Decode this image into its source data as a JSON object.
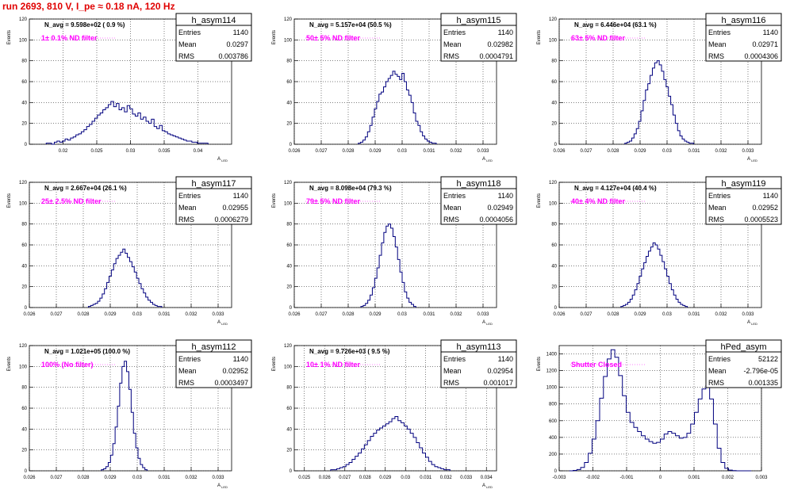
{
  "run_title": "run 2693,   810 V, I_pe ≈ 0.18 nA, 120 Hz",
  "chart_data": [
    {
      "type": "histogram",
      "name": "h_asym114",
      "stats": [
        [
          "Entries",
          "1140"
        ],
        [
          "Mean",
          "0.0297"
        ],
        [
          "RMS",
          "0.003786"
        ]
      ],
      "navg": "N_avg = 9.598e+02 ( 0.9 %)",
      "filter": "1± 0.1% ND filter",
      "ylabel": "Events",
      "xlabel": "A",
      "xlim": [
        0.015,
        0.045
      ],
      "ylim": [
        0,
        120
      ],
      "xticks": [
        0.02,
        0.025,
        0.03,
        0.035,
        0.04
      ],
      "xticklabels": [
        "0.02",
        "0.025",
        "0.03",
        "0.035",
        "0.04"
      ],
      "yticks": [
        0,
        20,
        40,
        60,
        80,
        100,
        120
      ],
      "values": [
        1,
        1,
        0,
        2,
        3,
        2,
        3,
        5,
        4,
        6,
        7,
        9,
        10,
        12,
        14,
        17,
        19,
        22,
        25,
        28,
        30,
        33,
        35,
        38,
        41,
        36,
        39,
        33,
        35,
        31,
        37,
        34,
        29,
        27,
        30,
        24,
        26,
        22,
        20,
        24,
        17,
        15,
        18,
        13,
        12,
        10,
        9,
        8,
        7,
        6,
        5,
        4,
        3,
        3,
        2,
        2,
        1,
        1,
        1,
        1
      ]
    },
    {
      "type": "histogram",
      "name": "h_asym115",
      "stats": [
        [
          "Entries",
          "1140"
        ],
        [
          "Mean",
          "0.02982"
        ],
        [
          "RMS",
          "0.0004791"
        ]
      ],
      "navg": "N_avg = 5.157e+04 (50.5 %)",
      "filter": "50± 5% ND filter",
      "ylabel": "Events",
      "xlabel": "A",
      "xlim": [
        0.026,
        0.0335
      ],
      "ylim": [
        0,
        120
      ],
      "xticks": [
        0.026,
        0.027,
        0.028,
        0.029,
        0.03,
        0.031,
        0.032,
        0.033
      ],
      "xticklabels": [
        "0.026",
        "0.027",
        "0.028",
        "0.029",
        "0.03",
        "0.031",
        "0.032",
        "0.033"
      ],
      "yticks": [
        0,
        20,
        40,
        60,
        80,
        100,
        120
      ],
      "values": [
        1,
        2,
        4,
        7,
        12,
        18,
        26,
        34,
        41,
        48,
        50,
        55,
        60,
        63,
        66,
        70,
        67,
        65,
        62,
        68,
        60,
        52,
        47,
        40,
        30,
        22,
        18,
        12,
        8,
        5,
        3,
        2,
        1,
        1
      ]
    },
    {
      "type": "histogram",
      "name": "h_asym116",
      "stats": [
        [
          "Entries",
          "1140"
        ],
        [
          "Mean",
          "0.02971"
        ],
        [
          "RMS",
          "0.0004306"
        ]
      ],
      "navg": "N_avg = 6.446e+04 (63.1 %)",
      "filter": "63± 5% ND filter",
      "ylabel": "Events",
      "xlabel": "A",
      "xlim": [
        0.026,
        0.0335
      ],
      "ylim": [
        0,
        120
      ],
      "xticks": [
        0.026,
        0.027,
        0.028,
        0.029,
        0.03,
        0.031,
        0.032,
        0.033
      ],
      "xticklabels": [
        "0.026",
        "0.027",
        "0.028",
        "0.029",
        "0.03",
        "0.031",
        "0.032",
        "0.033"
      ],
      "yticks": [
        0,
        20,
        40,
        60,
        80,
        100,
        120
      ],
      "values": [
        1,
        2,
        3,
        6,
        10,
        15,
        22,
        32,
        42,
        52,
        58,
        66,
        73,
        78,
        80,
        76,
        70,
        62,
        55,
        46,
        38,
        28,
        20,
        13,
        8,
        5,
        3,
        2,
        1,
        1
      ]
    },
    {
      "type": "histogram",
      "name": "h_asym117",
      "stats": [
        [
          "Entries",
          "1140"
        ],
        [
          "Mean",
          "0.02955"
        ],
        [
          "RMS",
          "0.0006279"
        ]
      ],
      "navg": "N_avg = 2.667e+04 (26.1 %)",
      "filter": "25± 2.5% ND filter",
      "ylabel": "Events",
      "xlabel": "A",
      "xlim": [
        0.026,
        0.0335
      ],
      "ylim": [
        0,
        120
      ],
      "xticks": [
        0.026,
        0.027,
        0.028,
        0.029,
        0.03,
        0.031,
        0.032,
        0.033
      ],
      "xticklabels": [
        "0.026",
        "0.027",
        "0.028",
        "0.029",
        "0.03",
        "0.031",
        "0.032",
        "0.033"
      ],
      "yticks": [
        0,
        20,
        40,
        60,
        80,
        100,
        120
      ],
      "values": [
        1,
        2,
        3,
        4,
        6,
        9,
        13,
        18,
        24,
        30,
        36,
        42,
        47,
        50,
        53,
        56,
        52,
        48,
        44,
        39,
        34,
        28,
        23,
        18,
        14,
        10,
        7,
        5,
        3,
        2,
        1,
        1
      ]
    },
    {
      "type": "histogram",
      "name": "h_asym118",
      "stats": [
        [
          "Entries",
          "1140"
        ],
        [
          "Mean",
          "0.02949"
        ],
        [
          "RMS",
          "0.0004056"
        ]
      ],
      "navg": "N_avg = 8.098e+04 (79.3 %)",
      "filter": "79± 5% ND filter",
      "ylabel": "Events",
      "xlabel": "A",
      "xlim": [
        0.026,
        0.0335
      ],
      "ylim": [
        0,
        120
      ],
      "xticks": [
        0.026,
        0.027,
        0.028,
        0.029,
        0.03,
        0.031,
        0.032,
        0.033
      ],
      "xticklabels": [
        "0.026",
        "0.027",
        "0.028",
        "0.029",
        "0.03",
        "0.031",
        "0.032",
        "0.033"
      ],
      "yticks": [
        0,
        20,
        40,
        60,
        80,
        100,
        120
      ],
      "values": [
        1,
        2,
        4,
        7,
        12,
        19,
        28,
        38,
        50,
        62,
        72,
        78,
        80,
        76,
        68,
        58,
        46,
        34,
        24,
        15,
        9,
        5,
        3,
        1
      ]
    },
    {
      "type": "histogram",
      "name": "h_asym119",
      "stats": [
        [
          "Entries",
          "1140"
        ],
        [
          "Mean",
          "0.02952"
        ],
        [
          "RMS",
          "0.0005523"
        ]
      ],
      "navg": "N_avg = 4.127e+04 (40.4 %)",
      "filter": "40± 4% ND filter",
      "ylabel": "Events",
      "xlabel": "A",
      "xlim": [
        0.026,
        0.0335
      ],
      "ylim": [
        0,
        120
      ],
      "xticks": [
        0.026,
        0.027,
        0.028,
        0.029,
        0.03,
        0.031,
        0.032,
        0.033
      ],
      "xticklabels": [
        "0.026",
        "0.027",
        "0.028",
        "0.029",
        "0.03",
        "0.031",
        "0.032",
        "0.033"
      ],
      "yticks": [
        0,
        20,
        40,
        60,
        80,
        100,
        120
      ],
      "values": [
        1,
        2,
        3,
        5,
        8,
        12,
        17,
        23,
        30,
        37,
        43,
        49,
        54,
        58,
        62,
        60,
        56,
        50,
        44,
        37,
        30,
        23,
        17,
        12,
        8,
        5,
        3,
        2,
        1
      ]
    },
    {
      "type": "histogram",
      "name": "h_asym112",
      "stats": [
        [
          "Entries",
          "1140"
        ],
        [
          "Mean",
          "0.02952"
        ],
        [
          "RMS",
          "0.0003497"
        ]
      ],
      "navg": "N_avg = 1.021e+05 (100.0 %)",
      "filter": "100% (No filter)",
      "ylabel": "Events",
      "xlabel": "A",
      "xlim": [
        0.026,
        0.0335
      ],
      "ylim": [
        0,
        120
      ],
      "xticks": [
        0.026,
        0.027,
        0.028,
        0.029,
        0.03,
        0.031,
        0.032,
        0.033
      ],
      "xticklabels": [
        "0.026",
        "0.027",
        "0.028",
        "0.029",
        "0.03",
        "0.031",
        "0.032",
        "0.033"
      ],
      "yticks": [
        0,
        20,
        40,
        60,
        80,
        100,
        120
      ],
      "values": [
        1,
        2,
        4,
        8,
        15,
        26,
        42,
        62,
        84,
        100,
        105,
        95,
        78,
        56,
        36,
        22,
        12,
        6,
        3,
        1
      ]
    },
    {
      "type": "histogram",
      "name": "h_asym113",
      "stats": [
        [
          "Entries",
          "1140"
        ],
        [
          "Mean",
          "0.02954"
        ],
        [
          "RMS",
          "0.001017"
        ]
      ],
      "navg": "N_avg = 9.726e+03 ( 9.5 %)",
      "filter": "10± 1% ND filter",
      "ylabel": "Events",
      "xlabel": "A",
      "xlim": [
        0.0245,
        0.0345
      ],
      "ylim": [
        0,
        120
      ],
      "xticks": [
        0.025,
        0.026,
        0.027,
        0.028,
        0.029,
        0.03,
        0.031,
        0.032,
        0.033,
        0.034
      ],
      "xticklabels": [
        "0.025",
        "0.026",
        "0.027",
        "0.028",
        "0.029",
        "0.03",
        "0.031",
        "0.032",
        "0.033",
        "0.034"
      ],
      "yticks": [
        0,
        20,
        40,
        60,
        80,
        100,
        120
      ],
      "values": [
        1,
        1,
        2,
        3,
        4,
        6,
        8,
        11,
        14,
        17,
        21,
        25,
        29,
        33,
        36,
        39,
        41,
        43,
        45,
        47,
        50,
        52,
        48,
        46,
        43,
        40,
        36,
        32,
        27,
        22,
        17,
        13,
        9,
        6,
        4,
        3,
        2,
        1,
        1
      ]
    },
    {
      "type": "histogram",
      "name": "hPed_asym",
      "stats": [
        [
          "Entries",
          "52122"
        ],
        [
          "Mean",
          "-2.796e-05"
        ],
        [
          "RMS",
          "0.001335"
        ]
      ],
      "navg": "",
      "filter": "Shutter Closed",
      "ylabel": "Events",
      "xlabel": "",
      "xlim": [
        -0.003,
        0.003
      ],
      "ylim": [
        0,
        1500
      ],
      "xticks": [
        -0.003,
        -0.002,
        -0.001,
        0,
        0.001,
        0.002,
        0.003
      ],
      "xticklabels": [
        "-0.003",
        "-0.002",
        "-0.001",
        "0",
        "0.001",
        "0.002",
        "0.003"
      ],
      "yticks": [
        0,
        200,
        400,
        600,
        800,
        1000,
        1200,
        1400
      ],
      "values": [
        0,
        5,
        15,
        40,
        100,
        210,
        380,
        600,
        870,
        1130,
        1340,
        1450,
        1360,
        1140,
        900,
        700,
        580,
        520,
        470,
        420,
        380,
        350,
        330,
        340,
        380,
        440,
        470,
        450,
        420,
        390,
        400,
        450,
        560,
        700,
        860,
        980,
        1020,
        860,
        560,
        270,
        100,
        30,
        8,
        2,
        0,
        0,
        0,
        0
      ]
    }
  ]
}
